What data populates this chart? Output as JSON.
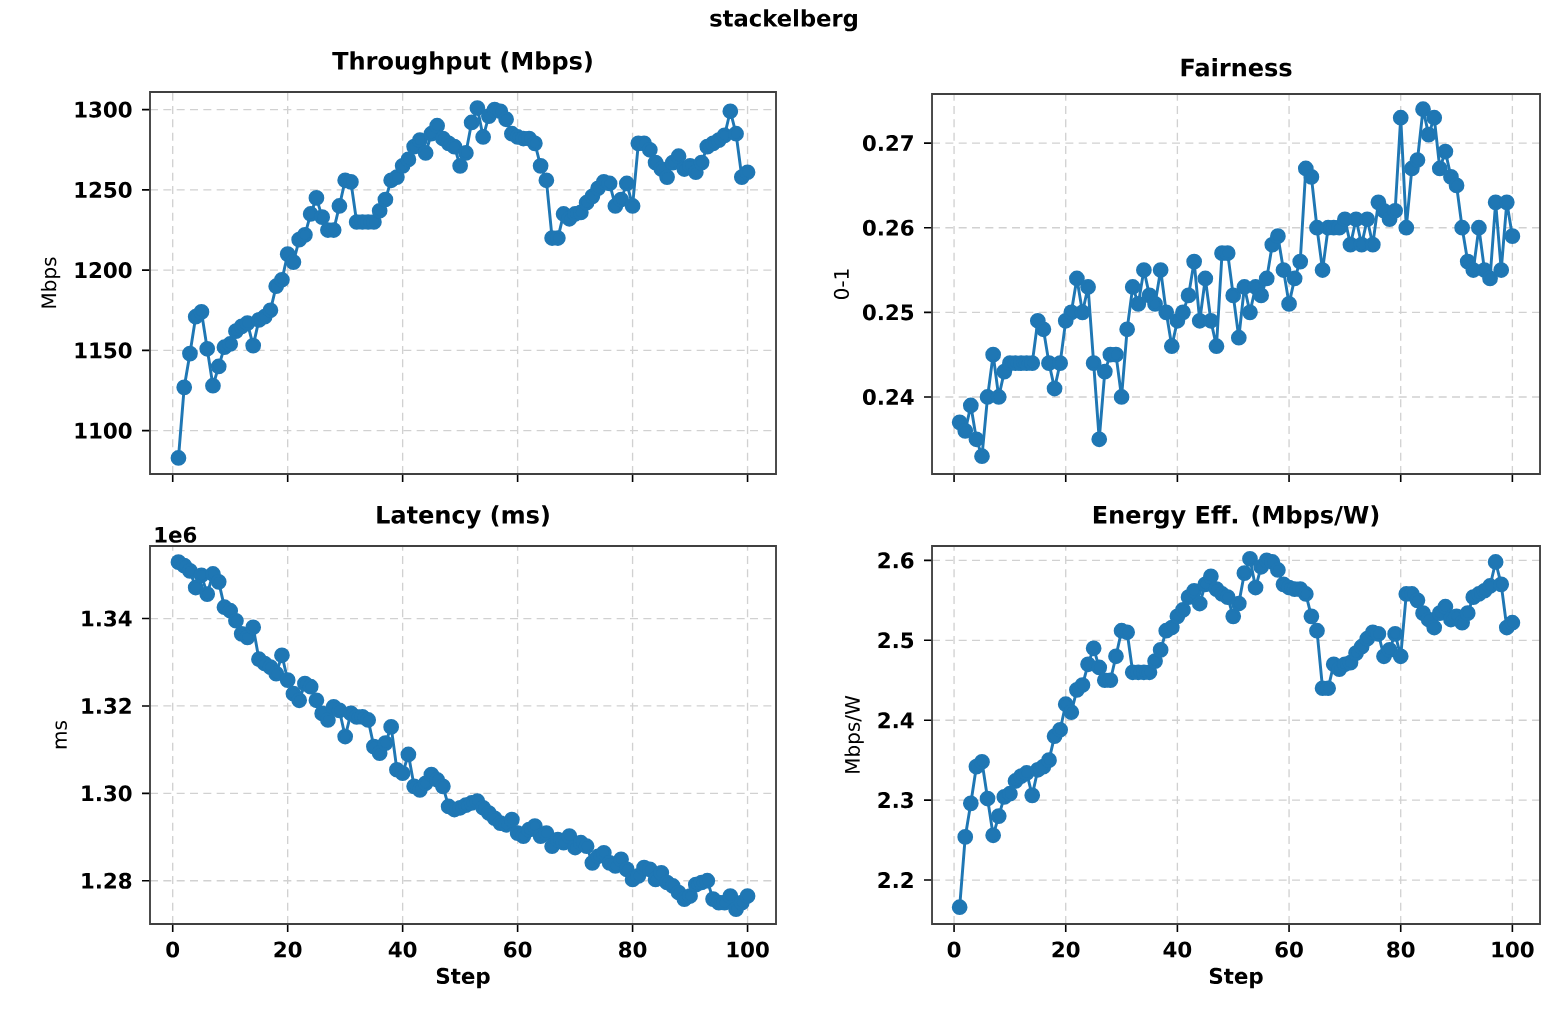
{
  "chart_data": [
    {
      "type": "line",
      "title": "Throughput (Mbps)",
      "ylabel": "Mbps",
      "annotations": [
        "stackelberg"
      ],
      "color": "#1f77b4",
      "marker": "circle",
      "line_style": "solid",
      "grid": true,
      "tick_labels": "y",
      "xlim": [
        -3.95,
        104.95
      ],
      "xticks": [
        0,
        20,
        40,
        60,
        80,
        100
      ],
      "ylim": [
        1073,
        1311
      ],
      "yticks": [
        1100,
        1150,
        1200,
        1250,
        1300
      ],
      "x": [
        1,
        2,
        3,
        4,
        5,
        6,
        7,
        8,
        9,
        10,
        11,
        12,
        13,
        14,
        15,
        16,
        17,
        18,
        19,
        20,
        21,
        22,
        23,
        24,
        25,
        26,
        27,
        28,
        29,
        30,
        31,
        32,
        33,
        34,
        35,
        36,
        37,
        38,
        39,
        40,
        41,
        42,
        43,
        44,
        45,
        46,
        47,
        48,
        49,
        50,
        51,
        52,
        53,
        54,
        55,
        56,
        57,
        58,
        59,
        60,
        61,
        62,
        63,
        64,
        65,
        66,
        67,
        68,
        69,
        70,
        71,
        72,
        73,
        74,
        75,
        76,
        77,
        78,
        79,
        80,
        81,
        82,
        83,
        84,
        85,
        86,
        87,
        88,
        89,
        90,
        91,
        92,
        93,
        94,
        95,
        96,
        97,
        98,
        99,
        100
      ],
      "values": [
        1083,
        1127,
        1148,
        1171,
        1174,
        1151,
        1128,
        1140,
        1152,
        1154,
        1162,
        1165,
        1167,
        1153,
        1169,
        1171,
        1175,
        1190,
        1194,
        1210,
        1205,
        1219,
        1222,
        1235,
        1245,
        1233,
        1225,
        1225,
        1240,
        1256,
        1255,
        1230,
        1230,
        1230,
        1230,
        1237,
        1244,
        1256,
        1258,
        1265,
        1269,
        1277,
        1281,
        1273,
        1285,
        1290,
        1282,
        1279,
        1277,
        1265,
        1273,
        1292,
        1301,
        1283,
        1296,
        1300,
        1299,
        1294,
        1285,
        1283,
        1282,
        1282,
        1279,
        1265,
        1256,
        1220,
        1220,
        1235,
        1232,
        1235,
        1236,
        1242,
        1246,
        1251,
        1255,
        1254,
        1240,
        1244,
        1254,
        1240,
        1279,
        1279,
        1275,
        1267,
        1263,
        1258,
        1267,
        1271,
        1263,
        1265,
        1261,
        1267,
        1277,
        1279,
        1281,
        1284,
        1299,
        1285,
        1258,
        1261
      ]
    },
    {
      "type": "line",
      "title": "Fairness",
      "ylabel": "0-1",
      "color": "#1f77b4",
      "marker": "circle",
      "line_style": "solid",
      "grid": true,
      "tick_labels": "y",
      "xlim": [
        -3.95,
        104.95
      ],
      "xticks": [
        0,
        20,
        40,
        60,
        80,
        100
      ],
      "ylim": [
        0.2309,
        0.2758
      ],
      "yticks": [
        0.24,
        0.25,
        0.26,
        0.27
      ],
      "x": [
        1,
        2,
        3,
        4,
        5,
        6,
        7,
        8,
        9,
        10,
        11,
        12,
        13,
        14,
        15,
        16,
        17,
        18,
        19,
        20,
        21,
        22,
        23,
        24,
        25,
        26,
        27,
        28,
        29,
        30,
        31,
        32,
        33,
        34,
        35,
        36,
        37,
        38,
        39,
        40,
        41,
        42,
        43,
        44,
        45,
        46,
        47,
        48,
        49,
        50,
        51,
        52,
        53,
        54,
        55,
        56,
        57,
        58,
        59,
        60,
        61,
        62,
        63,
        64,
        65,
        66,
        67,
        68,
        69,
        70,
        71,
        72,
        73,
        74,
        75,
        76,
        77,
        78,
        79,
        80,
        81,
        82,
        83,
        84,
        85,
        86,
        87,
        88,
        89,
        90,
        91,
        92,
        93,
        94,
        95,
        96,
        97,
        98,
        99,
        100
      ],
      "values": [
        0.237,
        0.236,
        0.239,
        0.235,
        0.233,
        0.24,
        0.245,
        0.24,
        0.243,
        0.244,
        0.244,
        0.244,
        0.244,
        0.244,
        0.249,
        0.248,
        0.244,
        0.241,
        0.244,
        0.249,
        0.25,
        0.254,
        0.25,
        0.253,
        0.244,
        0.235,
        0.243,
        0.245,
        0.245,
        0.24,
        0.248,
        0.253,
        0.251,
        0.255,
        0.252,
        0.251,
        0.255,
        0.25,
        0.246,
        0.249,
        0.25,
        0.252,
        0.256,
        0.249,
        0.254,
        0.249,
        0.246,
        0.257,
        0.257,
        0.252,
        0.247,
        0.253,
        0.25,
        0.253,
        0.252,
        0.254,
        0.258,
        0.259,
        0.255,
        0.251,
        0.254,
        0.256,
        0.267,
        0.266,
        0.26,
        0.255,
        0.26,
        0.26,
        0.26,
        0.261,
        0.258,
        0.261,
        0.258,
        0.261,
        0.258,
        0.263,
        0.262,
        0.261,
        0.262,
        0.273,
        0.26,
        0.267,
        0.268,
        0.274,
        0.271,
        0.273,
        0.267,
        0.269,
        0.266,
        0.265,
        0.26,
        0.256,
        0.255,
        0.26,
        0.255,
        0.254,
        0.263,
        0.255,
        0.263,
        0.259
      ]
    },
    {
      "type": "line",
      "title": "Latency (ms)",
      "xlabel": "Step",
      "ylabel": "ms",
      "annotations": [
        "1e6"
      ],
      "color": "#1f77b4",
      "marker": "circle",
      "line_style": "solid",
      "grid": true,
      "xlim": [
        -3.95,
        104.95
      ],
      "xticks": [
        0,
        20,
        40,
        60,
        80,
        100
      ],
      "ylim": [
        1.2701,
        1.3566
      ],
      "yticks": [
        1.28,
        {
          "value": 1.3,
          "label": "1.30"
        },
        1.32,
        1.34
      ],
      "x": [
        1,
        2,
        3,
        4,
        5,
        6,
        7,
        8,
        9,
        10,
        11,
        12,
        13,
        14,
        15,
        16,
        17,
        18,
        19,
        20,
        21,
        22,
        23,
        24,
        25,
        26,
        27,
        28,
        29,
        30,
        31,
        32,
        33,
        34,
        35,
        36,
        37,
        38,
        39,
        40,
        41,
        42,
        43,
        44,
        45,
        46,
        47,
        48,
        49,
        50,
        51,
        52,
        53,
        54,
        55,
        56,
        57,
        58,
        59,
        60,
        61,
        62,
        63,
        64,
        65,
        66,
        67,
        68,
        69,
        70,
        71,
        72,
        73,
        74,
        75,
        76,
        77,
        78,
        79,
        80,
        81,
        82,
        83,
        84,
        85,
        86,
        87,
        88,
        89,
        90,
        91,
        92,
        93,
        94,
        95,
        96,
        97,
        98,
        99,
        100
      ],
      "values": [
        1.3529,
        1.3521,
        1.3509,
        1.3471,
        1.3499,
        1.3456,
        1.3502,
        1.3484,
        1.3426,
        1.3418,
        1.3395,
        1.3365,
        1.3357,
        1.338,
        1.3307,
        1.3297,
        1.3289,
        1.3274,
        1.3316,
        1.3259,
        1.3228,
        1.3213,
        1.3251,
        1.3244,
        1.3213,
        1.3183,
        1.3168,
        1.3198,
        1.319,
        1.313,
        1.3183,
        1.3175,
        1.3175,
        1.3168,
        1.3107,
        1.3092,
        1.3115,
        1.3152,
        1.3054,
        1.3046,
        1.3089,
        1.3016,
        1.3008,
        1.3023,
        1.3043,
        1.3031,
        1.3016,
        1.297,
        1.2963,
        1.2967,
        1.2973,
        1.2978,
        1.2982,
        1.2967,
        1.2955,
        1.2943,
        1.2932,
        1.2928,
        1.294,
        1.2909,
        1.2902,
        1.2917,
        1.2925,
        1.2902,
        1.2909,
        1.2879,
        1.2894,
        1.2887,
        1.2902,
        1.2876,
        1.2887,
        1.2879,
        1.2841,
        1.2856,
        1.2864,
        1.2841,
        1.2834,
        1.2849,
        1.2826,
        1.2803,
        1.2811,
        1.283,
        1.2826,
        1.2803,
        1.2818,
        1.2796,
        1.2788,
        1.2773,
        1.2758,
        1.2765,
        1.2791,
        1.2796,
        1.28,
        1.2758,
        1.275,
        1.275,
        1.2765,
        1.2735,
        1.275,
        1.2765
      ]
    },
    {
      "type": "line",
      "title": "Energy Eff. (Mbps/W)",
      "xlabel": "Step",
      "ylabel": "Mbps/W",
      "color": "#1f77b4",
      "marker": "circle",
      "line_style": "solid",
      "grid": true,
      "xlim": [
        -3.95,
        104.95
      ],
      "xticks": [
        0,
        20,
        40,
        60,
        80,
        100
      ],
      "ylim": [
        2.145,
        2.618
      ],
      "yticks": [
        2.2,
        2.3,
        2.4,
        2.5,
        2.6
      ],
      "x": [
        1,
        2,
        3,
        4,
        5,
        6,
        7,
        8,
        9,
        10,
        11,
        12,
        13,
        14,
        15,
        16,
        17,
        18,
        19,
        20,
        21,
        22,
        23,
        24,
        25,
        26,
        27,
        28,
        29,
        30,
        31,
        32,
        33,
        34,
        35,
        36,
        37,
        38,
        39,
        40,
        41,
        42,
        43,
        44,
        45,
        46,
        47,
        48,
        49,
        50,
        51,
        52,
        53,
        54,
        55,
        56,
        57,
        58,
        59,
        60,
        61,
        62,
        63,
        64,
        65,
        66,
        67,
        68,
        69,
        70,
        71,
        72,
        73,
        74,
        75,
        76,
        77,
        78,
        79,
        80,
        81,
        82,
        83,
        84,
        85,
        86,
        87,
        88,
        89,
        90,
        91,
        92,
        93,
        94,
        95,
        96,
        97,
        98,
        99,
        100
      ],
      "values": [
        2.166,
        2.254,
        2.296,
        2.342,
        2.348,
        2.302,
        2.256,
        2.28,
        2.304,
        2.308,
        2.324,
        2.33,
        2.334,
        2.306,
        2.338,
        2.342,
        2.35,
        2.38,
        2.388,
        2.42,
        2.41,
        2.438,
        2.444,
        2.47,
        2.49,
        2.466,
        2.45,
        2.45,
        2.48,
        2.512,
        2.51,
        2.46,
        2.46,
        2.46,
        2.46,
        2.474,
        2.488,
        2.512,
        2.516,
        2.53,
        2.538,
        2.554,
        2.562,
        2.546,
        2.57,
        2.58,
        2.564,
        2.558,
        2.554,
        2.53,
        2.546,
        2.584,
        2.602,
        2.566,
        2.592,
        2.6,
        2.598,
        2.588,
        2.57,
        2.566,
        2.564,
        2.564,
        2.558,
        2.53,
        2.512,
        2.44,
        2.44,
        2.47,
        2.464,
        2.47,
        2.472,
        2.484,
        2.492,
        2.502,
        2.51,
        2.508,
        2.48,
        2.488,
        2.508,
        2.48,
        2.558,
        2.558,
        2.55,
        2.534,
        2.526,
        2.516,
        2.534,
        2.542,
        2.526,
        2.53,
        2.522,
        2.534,
        2.554,
        2.558,
        2.562,
        2.568,
        2.598,
        2.57,
        2.516,
        2.522
      ]
    }
  ]
}
